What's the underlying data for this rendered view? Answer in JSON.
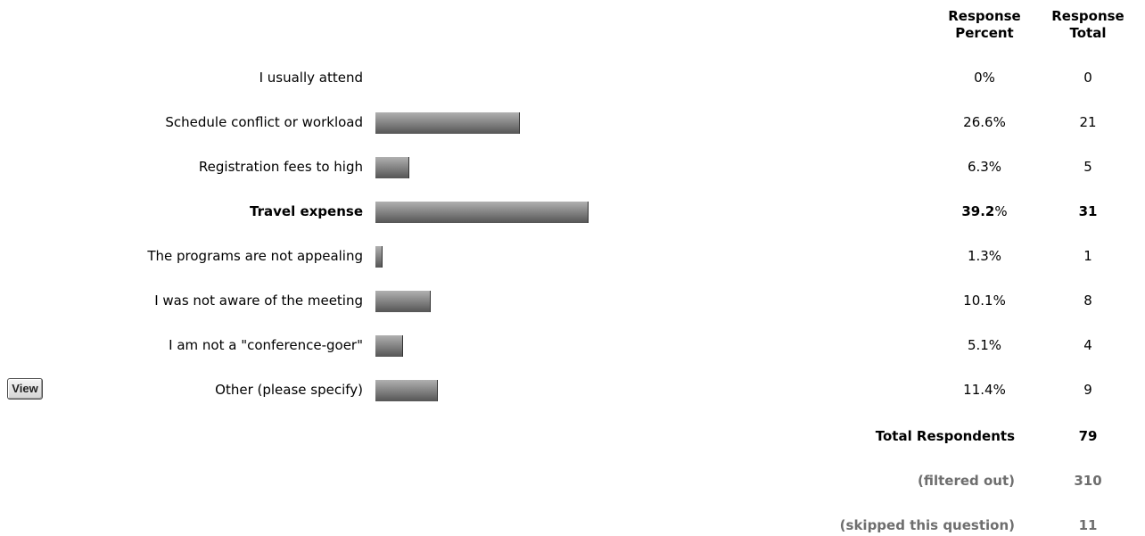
{
  "view_button_label": "View",
  "chart_data": {
    "type": "bar",
    "orientation": "horizontal",
    "columns": {
      "percent_header": [
        "Response",
        "Percent"
      ],
      "total_header": [
        "Response",
        "Total"
      ]
    },
    "rows": [
      {
        "label": "I usually attend",
        "percent_value": 0,
        "percent_text": "0%",
        "total": "0",
        "bold": false
      },
      {
        "label": "Schedule conflict or workload",
        "percent_value": 26.6,
        "percent_text": "26.6%",
        "total": "21",
        "bold": false
      },
      {
        "label": "Registration fees to high",
        "percent_value": 6.3,
        "percent_text": "6.3%",
        "total": "5",
        "bold": false
      },
      {
        "label": "Travel expense",
        "percent_value": 39.2,
        "percent_text": "39.2%",
        "total": "31",
        "bold": true
      },
      {
        "label": "The programs are not appealing",
        "percent_value": 1.3,
        "percent_text": "1.3%",
        "total": "1",
        "bold": false
      },
      {
        "label": "I was not aware of the meeting",
        "percent_value": 10.1,
        "percent_text": "10.1%",
        "total": "8",
        "bold": false
      },
      {
        "label": "I am not a \"conference-goer\"",
        "percent_value": 5.1,
        "percent_text": "5.1%",
        "total": "4",
        "bold": false
      },
      {
        "label": "Other (please specify)",
        "percent_value": 11.4,
        "percent_text": "11.4%",
        "total": "9",
        "bold": false
      }
    ],
    "xlim": [
      0,
      100
    ]
  },
  "summary": [
    {
      "label": "Total Respondents",
      "value": "79",
      "muted": false
    },
    {
      "label": "(filtered out)",
      "value": "310",
      "muted": true
    },
    {
      "label": "(skipped this question)",
      "value": "11",
      "muted": true
    }
  ],
  "colors": {
    "bar_light": "#b0b0b0",
    "bar_dark": "#555555",
    "muted_text": "#6e6e6e"
  }
}
